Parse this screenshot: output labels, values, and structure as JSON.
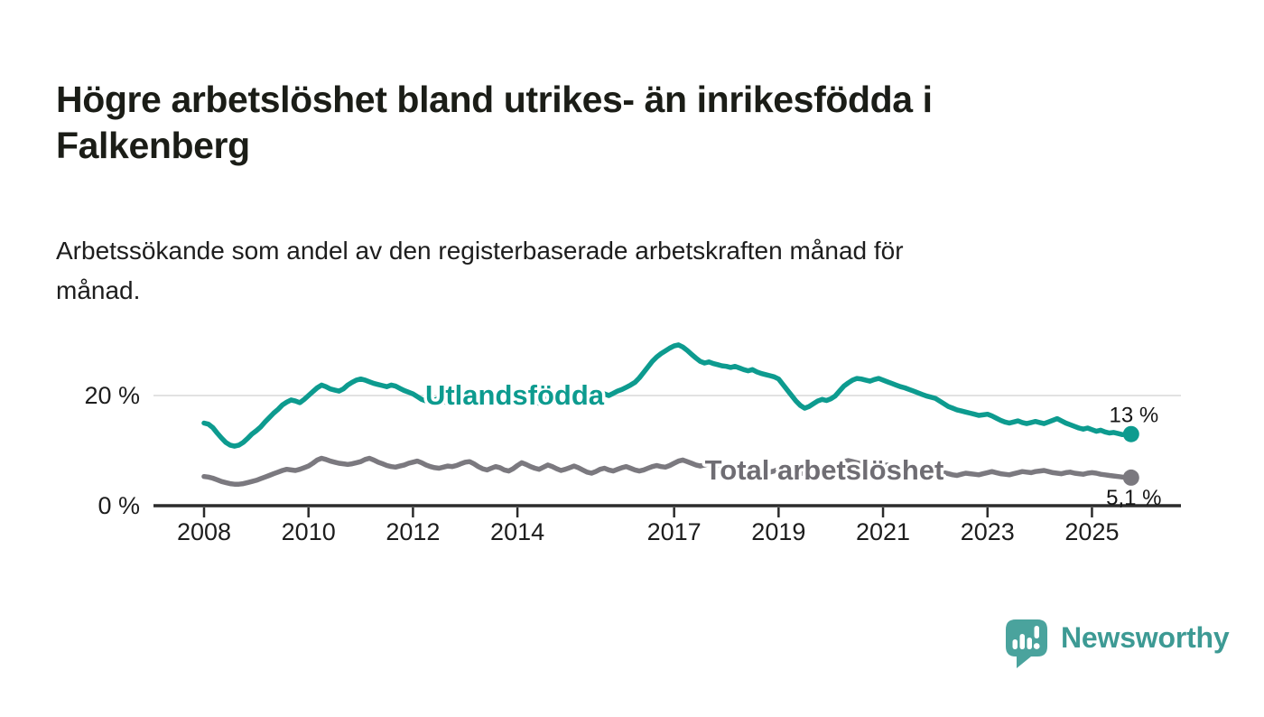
{
  "header": {
    "title_lines": [
      "Högre arbetslöshet bland utrikes- än inrikesfödda i",
      "Falkenberg"
    ],
    "subtitle_lines": [
      "Arbetssökande som andel av den registerbaserade arbetskraften månad för",
      "månad."
    ]
  },
  "branding": {
    "logo_text": "Newsworthy"
  },
  "colors": {
    "accent_teal": "#0d9b8f",
    "series_gray": "#7b797f",
    "gray_label": "#6f6d73",
    "axis": "#2b2b2b",
    "gridline": "#d9d9d9",
    "logo_bubble": "#4aa39d",
    "logo_text": "#3d9a94",
    "text": "#1d1d1d"
  },
  "chart_data": {
    "type": "line",
    "x_start": "2008-01",
    "frequency": "monthly",
    "x_ticks": [
      "2008",
      "2010",
      "2012",
      "2014",
      "2017",
      "2019",
      "2021",
      "2023",
      "2025"
    ],
    "x_tick_years": [
      2008,
      2010,
      2012,
      2014,
      2017,
      2019,
      2021,
      2023,
      2025
    ],
    "y_ticks": [
      {
        "value": 20,
        "label": "20 %"
      },
      {
        "value": 0,
        "label": "0 %"
      }
    ],
    "ylim": [
      0,
      32
    ],
    "grid": "horizontal line at 20 % only; x axis is the 0 % baseline",
    "legend_position": "labels drawn on lines",
    "series": [
      {
        "name": "Utlandsfödda",
        "color": "#0d9b8f",
        "label_color": "#0d9b8f",
        "end_label": "13 %",
        "values": [
          15.0,
          14.8,
          14.2,
          13.2,
          12.3,
          11.5,
          11.0,
          10.8,
          11.0,
          11.5,
          12.2,
          13.0,
          13.6,
          14.3,
          15.2,
          16.0,
          16.8,
          17.5,
          18.3,
          18.8,
          19.2,
          19.0,
          18.7,
          19.3,
          20.0,
          20.7,
          21.4,
          21.9,
          21.6,
          21.2,
          21.0,
          20.8,
          21.2,
          21.9,
          22.4,
          22.8,
          23.0,
          22.8,
          22.5,
          22.2,
          22.0,
          21.8,
          21.6,
          21.9,
          21.7,
          21.3,
          20.9,
          20.6,
          20.3,
          19.8,
          19.3,
          19.0,
          18.8,
          19.2,
          19.5,
          19.0,
          18.6,
          19.0,
          19.4,
          18.9,
          19.3,
          19.6,
          19.2,
          18.8,
          18.5,
          18.9,
          19.4,
          19.8,
          19.5,
          19.1,
          18.8,
          19.2,
          19.6,
          20.0,
          19.7,
          19.3,
          18.9,
          18.6,
          19.0,
          19.5,
          19.9,
          19.6,
          19.3,
          19.7,
          20.1,
          20.4,
          20.0,
          19.6,
          19.3,
          19.7,
          20.2,
          20.6,
          20.3,
          20.0,
          20.4,
          20.8,
          21.1,
          21.5,
          21.9,
          22.4,
          23.2,
          24.2,
          25.2,
          26.2,
          27.0,
          27.6,
          28.1,
          28.6,
          29.0,
          29.2,
          28.8,
          28.2,
          27.5,
          26.8,
          26.2,
          25.9,
          26.1,
          25.8,
          25.6,
          25.4,
          25.3,
          25.1,
          25.3,
          25.0,
          24.7,
          24.5,
          24.7,
          24.3,
          24.0,
          23.8,
          23.6,
          23.4,
          23.0,
          22.0,
          21.0,
          20.0,
          19.0,
          18.2,
          17.7,
          18.0,
          18.5,
          19.0,
          19.3,
          19.1,
          19.4,
          19.9,
          20.8,
          21.7,
          22.3,
          22.8,
          23.1,
          23.0,
          22.8,
          22.6,
          22.9,
          23.1,
          22.8,
          22.5,
          22.2,
          21.9,
          21.6,
          21.4,
          21.1,
          20.8,
          20.5,
          20.2,
          19.9,
          19.7,
          19.5,
          19.0,
          18.5,
          18.0,
          17.7,
          17.4,
          17.2,
          17.0,
          16.8,
          16.6,
          16.4,
          16.5,
          16.6,
          16.3,
          15.9,
          15.5,
          15.2,
          15.0,
          15.2,
          15.4,
          15.1,
          14.9,
          15.1,
          15.3,
          15.1,
          14.9,
          15.2,
          15.5,
          15.8,
          15.4,
          15.0,
          14.7,
          14.4,
          14.1,
          13.9,
          14.1,
          13.8,
          13.5,
          13.7,
          13.4,
          13.2,
          13.3,
          13.1,
          12.9,
          13.0,
          13.0
        ]
      },
      {
        "name": "Total arbetslöshet",
        "color": "#7b797f",
        "label_color": "#6f6d73",
        "end_label": "5,1 %",
        "values": [
          5.3,
          5.2,
          5.0,
          4.7,
          4.4,
          4.2,
          4.0,
          3.9,
          3.9,
          4.0,
          4.2,
          4.4,
          4.6,
          4.9,
          5.2,
          5.5,
          5.8,
          6.1,
          6.4,
          6.6,
          6.5,
          6.4,
          6.6,
          6.9,
          7.2,
          7.7,
          8.3,
          8.6,
          8.4,
          8.1,
          7.9,
          7.7,
          7.6,
          7.5,
          7.6,
          7.8,
          8.0,
          8.4,
          8.6,
          8.3,
          7.9,
          7.6,
          7.3,
          7.1,
          7.0,
          7.2,
          7.4,
          7.7,
          7.9,
          8.1,
          7.8,
          7.4,
          7.1,
          6.9,
          6.8,
          7.0,
          7.2,
          7.1,
          7.3,
          7.6,
          7.9,
          8.0,
          7.6,
          7.1,
          6.7,
          6.5,
          6.8,
          7.1,
          6.9,
          6.5,
          6.3,
          6.7,
          7.3,
          7.8,
          7.5,
          7.1,
          6.8,
          6.6,
          7.0,
          7.4,
          7.1,
          6.7,
          6.4,
          6.6,
          6.9,
          7.2,
          6.9,
          6.5,
          6.1,
          5.9,
          6.2,
          6.6,
          6.8,
          6.5,
          6.3,
          6.6,
          6.9,
          7.1,
          6.8,
          6.5,
          6.3,
          6.5,
          6.8,
          7.1,
          7.3,
          7.1,
          7.0,
          7.3,
          7.7,
          8.1,
          8.3,
          8.0,
          7.7,
          7.4,
          7.2,
          7.4,
          7.6,
          7.4,
          7.2,
          7.0,
          7.2,
          7.4,
          7.1,
          6.8,
          6.5,
          6.3,
          6.5,
          6.7,
          6.5,
          6.3,
          6.1,
          6.3,
          6.6,
          6.8,
          6.5,
          6.2,
          6.0,
          5.8,
          6.0,
          6.2,
          6.4,
          6.2,
          6.1,
          6.3,
          6.7,
          7.0,
          7.6,
          8.0,
          8.2,
          8.0,
          7.8,
          7.6,
          7.4,
          7.2,
          7.0,
          7.1,
          7.3,
          7.4,
          7.1,
          6.8,
          6.5,
          6.3,
          6.1,
          6.0,
          5.9,
          5.8,
          5.7,
          5.9,
          6.1,
          6.2,
          6.0,
          5.8,
          5.6,
          5.5,
          5.7,
          5.9,
          5.8,
          5.7,
          5.6,
          5.8,
          6.0,
          6.2,
          6.0,
          5.8,
          5.7,
          5.6,
          5.8,
          6.0,
          6.2,
          6.1,
          6.0,
          6.2,
          6.3,
          6.4,
          6.2,
          6.0,
          5.9,
          5.8,
          6.0,
          6.1,
          5.9,
          5.8,
          5.7,
          5.9,
          6.0,
          5.9,
          5.7,
          5.6,
          5.5,
          5.4,
          5.3,
          5.2,
          5.1,
          5.1
        ]
      }
    ]
  }
}
